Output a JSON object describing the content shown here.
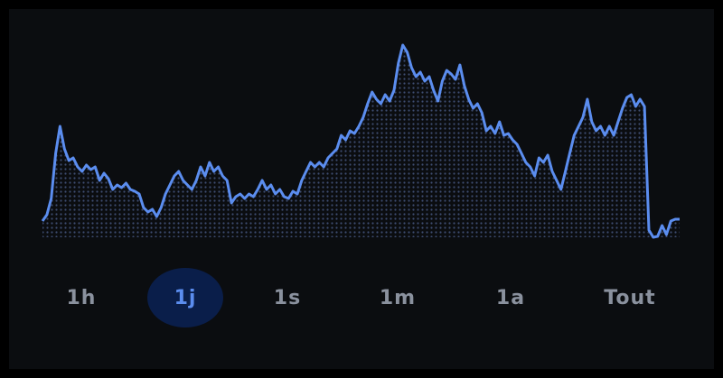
{
  "chart_data": {
    "type": "line",
    "color": "#5b8def",
    "values": [
      20,
      27,
      45,
      95,
      125,
      100,
      87,
      90,
      80,
      75,
      82,
      77,
      80,
      65,
      73,
      67,
      55,
      60,
      57,
      62,
      55,
      53,
      50,
      35,
      30,
      33,
      25,
      35,
      50,
      60,
      70,
      75,
      65,
      60,
      55,
      65,
      80,
      70,
      85,
      75,
      80,
      70,
      65,
      40,
      47,
      50,
      45,
      50,
      47,
      55,
      65,
      55,
      60,
      50,
      55,
      47,
      45,
      53,
      50,
      65,
      75,
      85,
      80,
      85,
      80,
      90,
      95,
      100,
      115,
      110,
      120,
      117,
      125,
      135,
      150,
      163,
      155,
      150,
      160,
      153,
      165,
      195,
      215,
      207,
      190,
      180,
      185,
      175,
      180,
      165,
      153,
      175,
      187,
      183,
      177,
      193,
      170,
      155,
      145,
      150,
      140,
      120,
      125,
      117,
      130,
      115,
      117,
      110,
      105,
      95,
      85,
      80,
      70,
      90,
      85,
      93,
      75,
      65,
      55,
      75,
      95,
      115,
      125,
      135,
      155,
      130,
      120,
      125,
      115,
      125,
      115,
      130,
      145,
      157,
      160,
      147,
      155,
      147,
      10,
      2,
      3,
      15,
      5,
      20,
      22,
      22
    ]
  },
  "range_buttons": {
    "labels": [
      "1h",
      "1j",
      "1s",
      "1m",
      "1a",
      "Tout"
    ],
    "selected": 1
  }
}
